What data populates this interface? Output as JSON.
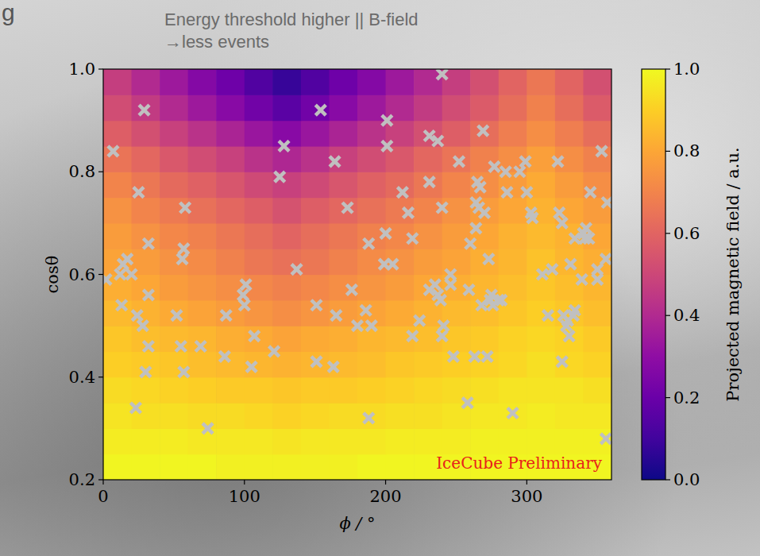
{
  "chart_data": {
    "type": "heatmap",
    "title": "Energy threshold higher || B-field",
    "subtitle": "→less events",
    "annotations": [
      "g",
      "IceCube Preliminary"
    ],
    "x_label": "ϕ / °",
    "y_label": "cosθ",
    "xlim": [
      0,
      360
    ],
    "xticks": [
      0,
      100,
      200,
      300
    ],
    "ylim": [
      0.2,
      1.0
    ],
    "yticks": [
      0.2,
      0.4,
      0.6,
      0.8,
      {
        "value": 1.0,
        "label": "1.0"
      }
    ],
    "grid": false,
    "heatmap": {
      "x_edges": [
        0,
        20,
        40,
        60,
        80,
        100,
        120,
        140,
        160,
        180,
        200,
        220,
        240,
        260,
        280,
        300,
        320,
        340,
        360
      ],
      "y_edges": [
        0.2,
        0.25,
        0.3,
        0.35,
        0.4,
        0.45,
        0.5,
        0.55,
        0.6,
        0.65,
        0.7,
        0.75,
        0.8,
        0.85,
        0.9,
        0.95,
        1.0
      ],
      "values": [
        [
          0.99,
          0.99,
          0.99,
          0.99,
          0.98,
          0.98,
          0.98,
          0.98,
          0.98,
          0.99,
          0.99,
          0.99,
          0.99,
          0.99,
          0.99,
          0.99,
          0.99,
          0.99
        ],
        [
          0.97,
          0.97,
          0.97,
          0.96,
          0.96,
          0.96,
          0.95,
          0.96,
          0.96,
          0.96,
          0.97,
          0.97,
          0.97,
          0.98,
          0.98,
          0.98,
          0.98,
          0.98
        ],
        [
          0.95,
          0.94,
          0.94,
          0.93,
          0.93,
          0.92,
          0.91,
          0.92,
          0.93,
          0.93,
          0.94,
          0.94,
          0.95,
          0.96,
          0.96,
          0.97,
          0.96,
          0.96
        ],
        [
          0.93,
          0.92,
          0.91,
          0.9,
          0.89,
          0.89,
          0.88,
          0.89,
          0.89,
          0.9,
          0.91,
          0.92,
          0.93,
          0.94,
          0.95,
          0.95,
          0.95,
          0.94
        ],
        [
          0.9,
          0.89,
          0.88,
          0.86,
          0.85,
          0.84,
          0.83,
          0.84,
          0.85,
          0.86,
          0.88,
          0.89,
          0.9,
          0.91,
          0.92,
          0.94,
          0.92,
          0.91
        ],
        [
          0.88,
          0.86,
          0.85,
          0.84,
          0.82,
          0.81,
          0.79,
          0.81,
          0.82,
          0.84,
          0.85,
          0.86,
          0.88,
          0.89,
          0.91,
          0.92,
          0.91,
          0.89
        ],
        [
          0.85,
          0.83,
          0.81,
          0.79,
          0.77,
          0.75,
          0.73,
          0.75,
          0.77,
          0.79,
          0.81,
          0.83,
          0.85,
          0.86,
          0.88,
          0.9,
          0.88,
          0.86
        ],
        [
          0.82,
          0.8,
          0.77,
          0.75,
          0.73,
          0.71,
          0.69,
          0.71,
          0.73,
          0.75,
          0.77,
          0.8,
          0.82,
          0.84,
          0.86,
          0.88,
          0.86,
          0.84
        ],
        [
          0.79,
          0.77,
          0.74,
          0.72,
          0.69,
          0.66,
          0.64,
          0.66,
          0.69,
          0.72,
          0.74,
          0.77,
          0.79,
          0.82,
          0.84,
          0.87,
          0.84,
          0.82
        ],
        [
          0.77,
          0.74,
          0.71,
          0.69,
          0.66,
          0.63,
          0.6,
          0.63,
          0.66,
          0.69,
          0.71,
          0.74,
          0.77,
          0.8,
          0.83,
          0.85,
          0.83,
          0.8
        ],
        [
          0.74,
          0.7,
          0.67,
          0.64,
          0.61,
          0.58,
          0.54,
          0.58,
          0.61,
          0.64,
          0.67,
          0.7,
          0.74,
          0.77,
          0.8,
          0.83,
          0.8,
          0.77
        ],
        [
          0.7,
          0.66,
          0.62,
          0.59,
          0.55,
          0.51,
          0.48,
          0.51,
          0.55,
          0.59,
          0.62,
          0.66,
          0.7,
          0.73,
          0.77,
          0.81,
          0.77,
          0.73
        ],
        [
          0.65,
          0.61,
          0.56,
          0.52,
          0.48,
          0.43,
          0.39,
          0.43,
          0.48,
          0.52,
          0.56,
          0.61,
          0.65,
          0.69,
          0.73,
          0.78,
          0.73,
          0.69
        ],
        [
          0.58,
          0.53,
          0.48,
          0.43,
          0.38,
          0.33,
          0.28,
          0.33,
          0.38,
          0.43,
          0.48,
          0.53,
          0.58,
          0.63,
          0.68,
          0.73,
          0.68,
          0.63
        ],
        [
          0.52,
          0.46,
          0.4,
          0.34,
          0.28,
          0.22,
          0.16,
          0.22,
          0.28,
          0.34,
          0.4,
          0.46,
          0.52,
          0.57,
          0.63,
          0.69,
          0.63,
          0.57
        ],
        [
          0.47,
          0.4,
          0.34,
          0.27,
          0.21,
          0.14,
          0.08,
          0.14,
          0.21,
          0.27,
          0.34,
          0.4,
          0.47,
          0.53,
          0.6,
          0.66,
          0.6,
          0.53
        ]
      ]
    },
    "colorbar": {
      "label": "Projected magnetic field / a.u.",
      "lim": [
        0,
        1
      ],
      "ticks": [
        {
          "value": 0,
          "label": "0.0"
        },
        0.2,
        0.4,
        0.6,
        0.8,
        {
          "value": 1,
          "label": "1.0"
        }
      ]
    },
    "series": [
      {
        "type": "scatter",
        "color": "#c0c0c0",
        "marker": "x",
        "x": [
          7,
          29,
          25,
          58,
          14,
          17,
          12,
          20,
          2,
          13,
          32,
          24,
          28,
          32,
          30,
          23,
          57,
          56,
          32,
          52,
          55,
          57,
          69,
          74,
          86,
          87,
          101,
          99,
          100,
          105,
          107,
          121,
          137,
          128,
          125,
          154,
          164,
          173,
          151,
          151,
          163,
          165,
          176,
          180,
          186,
          190,
          188,
          201,
          201,
          188,
          200,
          216,
          199,
          205,
          212,
          219,
          231,
          231,
          237,
          240,
          219,
          224,
          231,
          235,
          237,
          239,
          241,
          240,
          246,
          246,
          248,
          240,
          252,
          258,
          259,
          263,
          260,
          264,
          264,
          265,
          266,
          267,
          268,
          269,
          270,
          272,
          273,
          274,
          275,
          276,
          280,
          277,
          282,
          285,
          286,
          290,
          295,
          299,
          300,
          303,
          304,
          311,
          315,
          322,
          323,
          325,
          325,
          326,
          328,
          330,
          329,
          331,
          333,
          334,
          334,
          339,
          341,
          342,
          345,
          344,
          340,
          350,
          350,
          356,
          353,
          357,
          356,
          318
        ],
        "values": [
          0.84,
          0.92,
          0.76,
          0.73,
          0.62,
          0.63,
          0.6,
          0.6,
          0.59,
          0.54,
          0.56,
          0.52,
          0.5,
          0.46,
          0.41,
          0.34,
          0.65,
          0.63,
          0.66,
          0.52,
          0.46,
          0.41,
          0.46,
          0.3,
          0.44,
          0.52,
          0.58,
          0.56,
          0.54,
          0.42,
          0.48,
          0.45,
          0.61,
          0.85,
          0.79,
          0.92,
          0.82,
          0.73,
          0.54,
          0.43,
          0.42,
          0.52,
          0.57,
          0.5,
          0.53,
          0.5,
          0.66,
          0.9,
          0.85,
          0.32,
          0.68,
          0.72,
          0.62,
          0.62,
          0.76,
          0.67,
          0.78,
          0.87,
          0.86,
          0.73,
          0.48,
          0.51,
          0.57,
          0.58,
          0.56,
          0.55,
          0.5,
          0.48,
          0.58,
          0.6,
          0.44,
          0.99,
          0.82,
          0.35,
          0.57,
          0.44,
          0.66,
          0.69,
          0.74,
          0.78,
          0.73,
          0.77,
          0.54,
          0.88,
          0.72,
          0.44,
          0.63,
          0.55,
          0.56,
          0.54,
          0.55,
          0.81,
          0.55,
          0.8,
          0.76,
          0.33,
          0.8,
          0.82,
          0.76,
          0.72,
          0.71,
          0.6,
          0.52,
          0.82,
          0.72,
          0.7,
          0.43,
          0.52,
          0.5,
          0.48,
          0.51,
          0.62,
          0.52,
          0.53,
          0.67,
          0.59,
          0.67,
          0.69,
          0.76,
          0.67,
          0.68,
          0.59,
          0.61,
          0.63,
          0.84,
          0.74,
          0.28,
          0.61
        ]
      }
    ]
  }
}
